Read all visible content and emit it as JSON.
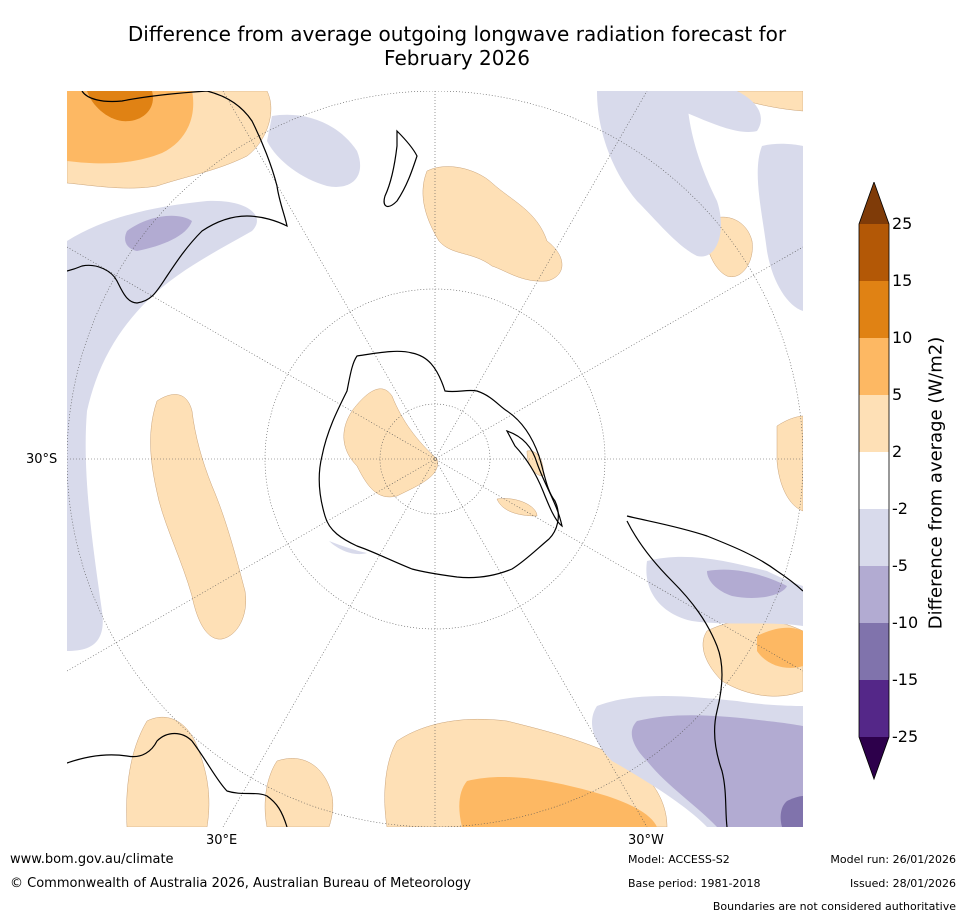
{
  "title": {
    "line1": "Difference from average outgoing longwave radiation forecast for",
    "line2": "February 2026"
  },
  "map": {
    "lat_label": "30°S",
    "lon_labels": [
      "30°E",
      "30°W"
    ],
    "anomaly_category_colors": {
      "pos_25_plus": "#7f3b08",
      "pos_15_25": "#b35806",
      "pos_10_15": "#e08214",
      "pos_5_10": "#fdb863",
      "pos_2_5": "#fee0b6",
      "neutral": "#ffffff",
      "neg_2_5": "#d8daeb",
      "neg_5_10": "#b2abd2",
      "neg_10_15": "#8073ac",
      "neg_15_25": "#542788",
      "neg_25_plus": "#2d004b"
    }
  },
  "colorbar": {
    "title": "Difference from average (W/m2)",
    "ticks": [
      "25",
      "15",
      "10",
      "5",
      "2",
      "-2",
      "-5",
      "-10",
      "-15",
      "-25"
    ],
    "colors": [
      "#b35806",
      "#e08214",
      "#fdb863",
      "#fee0b6",
      "#ffffff",
      "#d8daeb",
      "#b2abd2",
      "#8073ac",
      "#542788"
    ],
    "extend_max_color": "#7f3b08",
    "extend_min_color": "#2d004b"
  },
  "footer": {
    "website": "www.bom.gov.au/climate",
    "copyright": "© Commonwealth of Australia 2026, Australian Bureau of Meteorology",
    "model": "Model: ACCESS-S2",
    "base_period": "Base period: 1981-2018",
    "model_run": "Model run: 26/01/2026",
    "issued": "Issued: 28/01/2026",
    "disclaimer": "Boundaries are not considered authoritative"
  }
}
